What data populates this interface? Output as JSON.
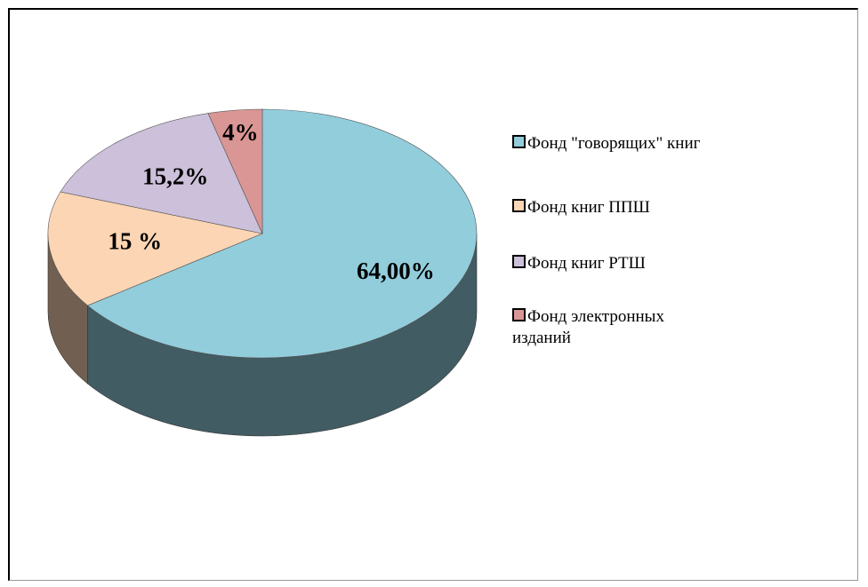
{
  "chart_data": {
    "type": "pie3d",
    "categories": [
      "Фонд \"говорящих\" книг",
      "Фонд книг ППШ",
      "Фонд книг РТШ",
      "Фонд электронных изданий"
    ],
    "values": [
      64,
      15,
      15.2,
      4
    ],
    "value_labels": [
      "64,00%",
      "15 %",
      "15,2%",
      "4%"
    ],
    "colors": [
      "#92cddc",
      "#fcd5b4",
      "#ccc0da",
      "#d99694"
    ],
    "legend": "right"
  }
}
